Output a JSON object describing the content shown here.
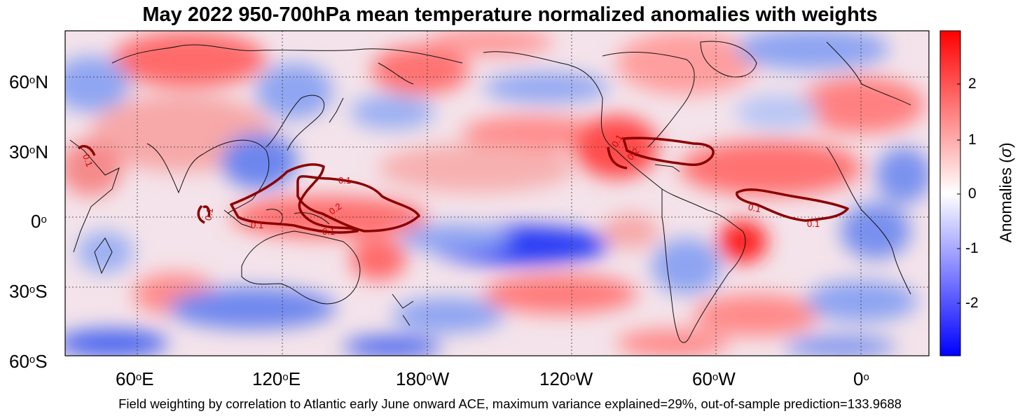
{
  "title": "May 2022 950-700hPa mean temperature normalized anomalies with weights",
  "footer": "Field weighting by correlation to Atlantic early June onward ACE, maximum variance explained=29%, out-of-sample prediction=133.9688",
  "colorbar": {
    "label_prefix": "Anomalies (",
    "label_symbol": "σ",
    "label_suffix": ")",
    "ticks": [
      "2",
      "1",
      "0",
      "-1",
      "-2"
    ],
    "range": [
      -2.9,
      2.9
    ],
    "colors": [
      "#0000ff",
      "#ffffff",
      "#ff0000"
    ]
  },
  "axes": {
    "lat_ticks": [
      {
        "num": "60",
        "sup": "o",
        "dir": "N"
      },
      {
        "num": "30",
        "sup": "o",
        "dir": "N"
      },
      {
        "num": "0",
        "sup": "o",
        "dir": ""
      },
      {
        "num": "30",
        "sup": "o",
        "dir": "S"
      },
      {
        "num": "60",
        "sup": "o",
        "dir": "S"
      }
    ],
    "lon_ticks": [
      {
        "num": "60",
        "sup": "o",
        "dir": "E"
      },
      {
        "num": "120",
        "sup": "o",
        "dir": "E"
      },
      {
        "num": "180",
        "sup": "o",
        "dir": "W"
      },
      {
        "num": "120",
        "sup": "o",
        "dir": "W"
      },
      {
        "num": "60",
        "sup": "o",
        "dir": "W"
      },
      {
        "num": "0",
        "sup": "o",
        "dir": ""
      }
    ],
    "lon_range_deg_east": [
      30,
      380
    ],
    "lat_range": [
      -60,
      80
    ]
  },
  "contour_labels": [
    "0.1",
    "0.1",
    "0.1",
    "0.1",
    "0.2",
    "0.1",
    "0.2",
    "0.1",
    "0.1",
    "0.1"
  ]
}
